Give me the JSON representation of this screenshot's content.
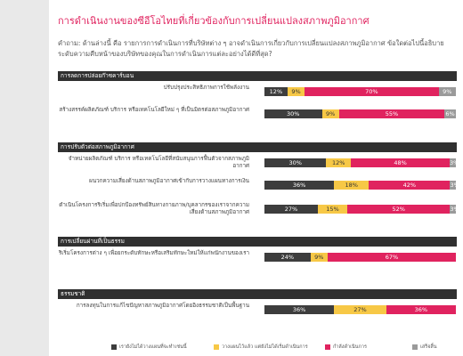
{
  "title": "การดำเนินงานของซีอีโอไทยที่เกี่ยวข้องกับการเปลี่ยนแปลงสภาพภูมิอากาศ",
  "question": "คำถาม: ด้านล่างนี้ คือ รายการการดำเนินการที่บริษัทต่าง ๆ อาจดำเนินการเกี่ยวกับการเปลี่ยนแปลงสภาพภูมิอากาศ ข้อใดต่อไปนี้อธิบายระดับความคืบหน้าของบริษัทของคุณในการดำเนินการแต่ละอย่างได้ดีที่สุด?",
  "colors": {
    "not_planned": "#3d3d3d",
    "planned": "#f7c846",
    "in_progress": "#e0235f",
    "completed": "#9a9a9a"
  },
  "chart_data": {
    "type": "bar",
    "orientation": "horizontal",
    "stacked": true,
    "series": [
      {
        "name": "เรายังไม่ได้วางแผนที่จะทำเช่นนี้",
        "color": "#3d3d3d"
      },
      {
        "name": "วางแผนไว้แล้ว แต่ยังไม่ได้เริ่มดำเนินการ",
        "color": "#f7c846"
      },
      {
        "name": "กำลังดำเนินการ",
        "color": "#e0235f"
      },
      {
        "name": "เสร็จสิ้น",
        "color": "#9a9a9a"
      }
    ],
    "groups": [
      {
        "name": "การลดการปล่อยก๊าซคาร์บอน",
        "items": [
          {
            "label": "ปรับปรุงประสิทธิภาพการใช้พลังงาน",
            "values": [
              12,
              9,
              70,
              9
            ]
          },
          {
            "label": "สร้างสรรค์ผลิตภัณฑ์ บริการ หรือเทคโนโลยีใหม่ ๆ ที่เป็นมิตรต่อสภาพภูมิอากาศ",
            "values": [
              30,
              9,
              55,
              6
            ]
          }
        ]
      },
      {
        "name": "การปรับตัวต่อสภาพภูมิอากาศ",
        "items": [
          {
            "label": "จำหน่ายผลิตภัณฑ์ บริการ หรือเทคโนโลยีที่สนับสนุนการฟื้นตัวจากสภาพภูมิอากาศ",
            "values": [
              30,
              12,
              48,
              3
            ]
          },
          {
            "label": "ผนวกความเสี่ยงด้านสภาพภูมิอากาศเข้ากับการวางแผนทางการเงิน",
            "values": [
              36,
              18,
              42,
              3
            ]
          },
          {
            "label": "ดำเนินโครงการริเริ่มเพื่อปกป้องทรัพย์สินทางกายภาพ/บุคลากรของเราจากความเสี่ยงด้านสภาพภูมิอากาศ",
            "values": [
              27,
              15,
              52,
              3
            ]
          }
        ]
      },
      {
        "name": "การเปลี่ยนผ่านที่เป็นธรรม",
        "items": [
          {
            "label": "ริเริ่มโครงการต่าง ๆ เพื่อยกระดับทักษะหรือเสริมทักษะใหม่ให้แก่พนักงานของเรา",
            "values": [
              24,
              9,
              67,
              null
            ]
          }
        ]
      },
      {
        "name": "ธรรมชาติ",
        "items": [
          {
            "label": "การลงทุนในการแก้ไขปัญหาสภาพภูมิอากาศโดยอิงธรรมชาติเป็นพื้นฐาน",
            "values": [
              36,
              27,
              36,
              null
            ]
          }
        ]
      }
    ],
    "xlim": [
      0,
      100
    ],
    "legend_position": "bottom"
  }
}
